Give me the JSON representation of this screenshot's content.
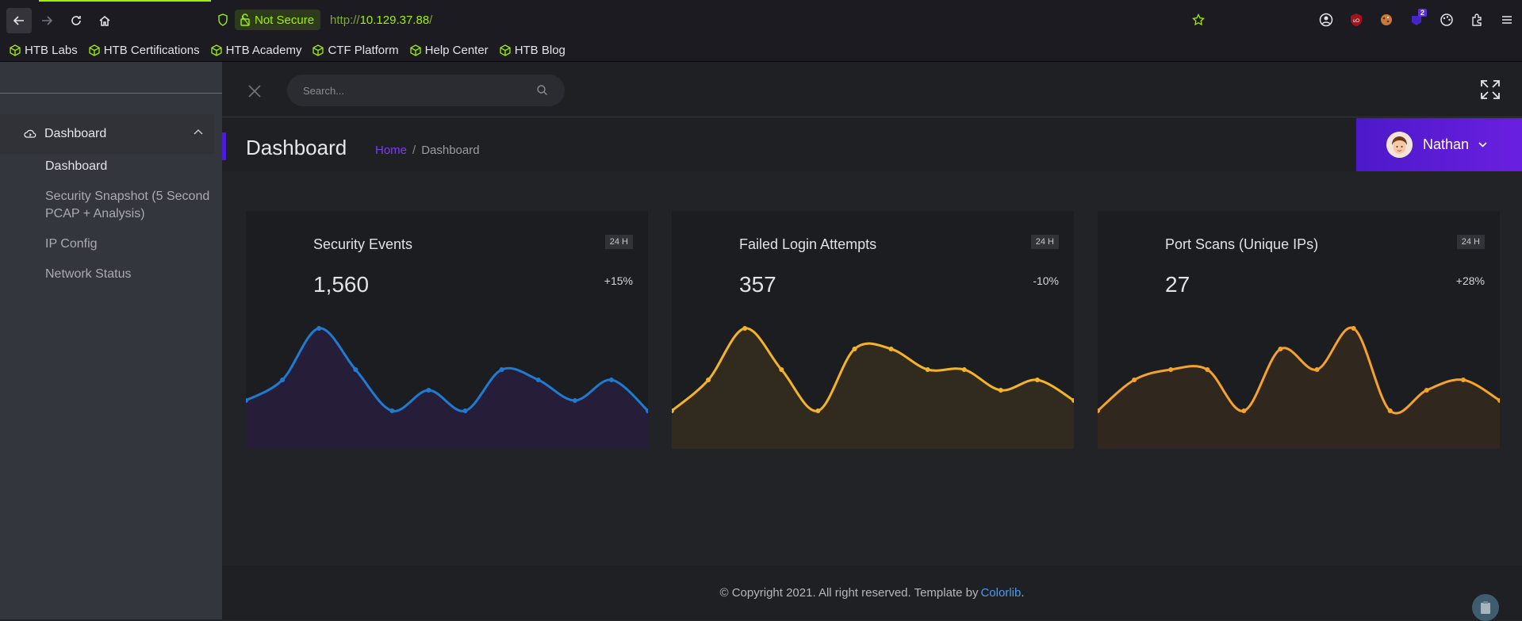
{
  "browser": {
    "security_label": "Not Secure",
    "url_protocol": "http://",
    "url_host": "10.129.37.88",
    "url_path": "/",
    "extension_badge": "2",
    "bookmarks": [
      "HTB Labs",
      "HTB Certifications",
      "HTB Academy",
      "CTF Platform",
      "Help Center",
      "HTB Blog"
    ]
  },
  "sidebar": {
    "menu_label": "Dashboard",
    "items": [
      "Dashboard",
      "Security Snapshot (5 Second PCAP + Analysis)",
      "IP Config",
      "Network Status"
    ]
  },
  "topbar": {
    "search_placeholder": "Search..."
  },
  "header": {
    "title": "Dashboard",
    "breadcrumb_home": "Home",
    "breadcrumb_sep": "/",
    "breadcrumb_current": "Dashboard",
    "user_name": "Nathan"
  },
  "cards": [
    {
      "title": "Security Events",
      "badge": "24 H",
      "value": "1,560",
      "change": "+15%",
      "color": "#1e7bd1",
      "fill": "#261d38"
    },
    {
      "title": "Failed Login Attempts",
      "badge": "24 H",
      "value": "357",
      "change": "-10%",
      "color": "#f5b425",
      "fill": "#312a1e"
    },
    {
      "title": "Port Scans (Unique IPs)",
      "badge": "24 H",
      "value": "27",
      "change": "+28%",
      "color": "#f5a32a",
      "fill": "#30271f"
    }
  ],
  "chart_data": [
    {
      "type": "line",
      "values": [
        2,
        4,
        9,
        5,
        1,
        3,
        1,
        5,
        4,
        2,
        4,
        1
      ]
    },
    {
      "type": "line",
      "values": [
        1,
        4,
        9,
        5,
        1,
        7,
        7,
        5,
        5,
        3,
        4,
        2
      ]
    },
    {
      "type": "line",
      "values": [
        1,
        4,
        5,
        5,
        1,
        7,
        5,
        9,
        1,
        3,
        4,
        2
      ]
    }
  ],
  "footer": {
    "copyright": "© Copyright 2021. All right reserved. Template by",
    "link": "Colorlib",
    "end": "."
  }
}
